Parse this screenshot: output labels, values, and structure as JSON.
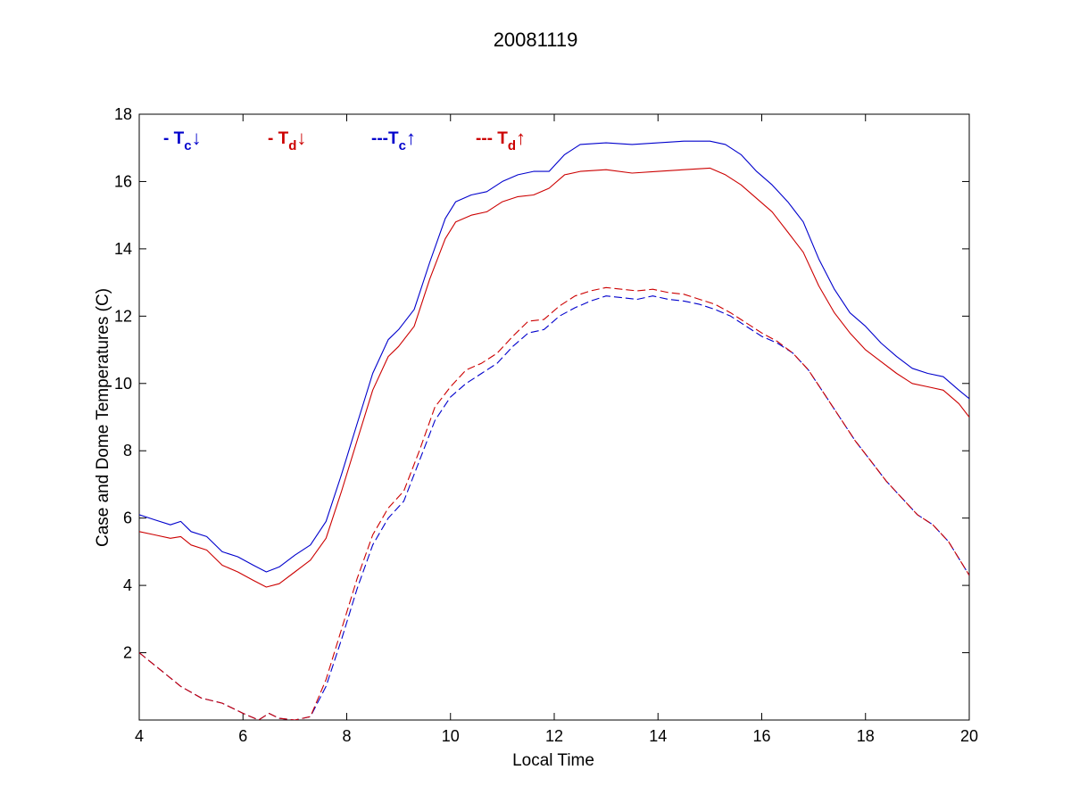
{
  "figure": {
    "title": "20081119",
    "xlabel": "Local Time",
    "ylabel": "Case and Dome Temperatures (C)"
  },
  "legend": [
    {
      "prefix": "- T",
      "sub": "c",
      "arrow": "↓",
      "color": "#0000cc"
    },
    {
      "prefix": "- T",
      "sub": "d",
      "arrow": "↓",
      "color": "#cc0000"
    },
    {
      "prefix": "---T",
      "sub": "c",
      "arrow": "↑",
      "color": "#0000cc"
    },
    {
      "prefix": "--- T",
      "sub": "d",
      "arrow": "↑",
      "color": "#cc0000"
    }
  ],
  "chart_data": {
    "type": "line",
    "title": "20081119",
    "xlabel": "Local Time",
    "ylabel": "Case and Dome Temperatures (C)",
    "xlim": [
      4,
      20
    ],
    "ylim": [
      0,
      18
    ],
    "xticks": [
      4,
      6,
      8,
      10,
      12,
      14,
      16,
      18,
      20
    ],
    "yticks": [
      2,
      4,
      6,
      8,
      10,
      12,
      14,
      16,
      18
    ],
    "grid": false,
    "legend_position": "top-left",
    "series": [
      {
        "name": "- Tc↓",
        "color": "#0000cc",
        "style": "solid",
        "x": [
          4.0,
          4.3,
          4.6,
          4.8,
          5.0,
          5.3,
          5.6,
          5.9,
          6.2,
          6.45,
          6.7,
          7.0,
          7.3,
          7.6,
          7.9,
          8.2,
          8.5,
          8.8,
          9.0,
          9.3,
          9.6,
          9.9,
          10.1,
          10.4,
          10.7,
          11.0,
          11.3,
          11.6,
          11.9,
          12.2,
          12.5,
          13.0,
          13.5,
          14.0,
          14.5,
          15.0,
          15.3,
          15.6,
          15.9,
          16.2,
          16.5,
          16.8,
          17.1,
          17.4,
          17.7,
          18.0,
          18.3,
          18.6,
          18.9,
          19.2,
          19.5,
          19.8,
          20.0
        ],
        "y": [
          6.1,
          5.95,
          5.8,
          5.9,
          5.6,
          5.45,
          5.0,
          4.85,
          4.6,
          4.4,
          4.55,
          4.9,
          5.2,
          5.9,
          7.3,
          8.8,
          10.3,
          11.3,
          11.6,
          12.2,
          13.6,
          14.9,
          15.4,
          15.6,
          15.7,
          16.0,
          16.2,
          16.3,
          16.3,
          16.8,
          17.1,
          17.15,
          17.1,
          17.15,
          17.2,
          17.2,
          17.1,
          16.8,
          16.3,
          15.9,
          15.4,
          14.8,
          13.7,
          12.8,
          12.1,
          11.7,
          11.2,
          10.8,
          10.45,
          10.3,
          10.2,
          9.8,
          9.55
        ]
      },
      {
        "name": "- Td↓",
        "color": "#cc0000",
        "style": "solid",
        "x": [
          4.0,
          4.3,
          4.6,
          4.8,
          5.0,
          5.3,
          5.6,
          5.9,
          6.2,
          6.45,
          6.7,
          7.0,
          7.3,
          7.6,
          7.9,
          8.2,
          8.5,
          8.8,
          9.0,
          9.3,
          9.6,
          9.9,
          10.1,
          10.4,
          10.7,
          11.0,
          11.3,
          11.6,
          11.9,
          12.2,
          12.5,
          13.0,
          13.5,
          14.0,
          14.5,
          15.0,
          15.3,
          15.6,
          15.9,
          16.2,
          16.5,
          16.8,
          17.1,
          17.4,
          17.7,
          18.0,
          18.3,
          18.6,
          18.9,
          19.2,
          19.5,
          19.8,
          20.0
        ],
        "y": [
          5.6,
          5.5,
          5.4,
          5.45,
          5.2,
          5.05,
          4.6,
          4.4,
          4.15,
          3.95,
          4.05,
          4.4,
          4.75,
          5.4,
          6.8,
          8.3,
          9.8,
          10.8,
          11.1,
          11.7,
          13.1,
          14.3,
          14.8,
          15.0,
          15.1,
          15.4,
          15.55,
          15.6,
          15.8,
          16.2,
          16.3,
          16.35,
          16.25,
          16.3,
          16.35,
          16.4,
          16.2,
          15.9,
          15.5,
          15.1,
          14.5,
          13.9,
          12.9,
          12.1,
          11.5,
          11.0,
          10.65,
          10.3,
          10.0,
          9.9,
          9.8,
          9.4,
          9.0
        ]
      },
      {
        "name": "---Tc↑",
        "color": "#0000cc",
        "style": "dashed",
        "x": [
          4.0,
          4.4,
          4.8,
          5.2,
          5.6,
          6.0,
          6.3,
          6.5,
          6.7,
          7.0,
          7.3,
          7.6,
          7.9,
          8.2,
          8.5,
          8.8,
          9.1,
          9.4,
          9.7,
          10.0,
          10.3,
          10.6,
          10.9,
          11.2,
          11.5,
          11.8,
          12.1,
          12.4,
          12.7,
          13.0,
          13.3,
          13.6,
          13.9,
          14.2,
          14.5,
          14.8,
          15.1,
          15.4,
          15.7,
          16.0,
          16.3,
          16.6,
          16.9,
          17.2,
          17.5,
          17.8,
          18.1,
          18.4,
          18.7,
          19.0,
          19.3,
          19.6,
          20.0
        ],
        "y": [
          2.0,
          1.5,
          1.0,
          0.65,
          0.5,
          0.2,
          0.0,
          0.2,
          0.05,
          0.0,
          0.1,
          1.0,
          2.4,
          3.9,
          5.2,
          6.0,
          6.5,
          7.7,
          8.9,
          9.6,
          10.0,
          10.3,
          10.6,
          11.1,
          11.5,
          11.6,
          12.0,
          12.25,
          12.45,
          12.6,
          12.55,
          12.5,
          12.6,
          12.5,
          12.45,
          12.35,
          12.2,
          12.0,
          11.7,
          11.4,
          11.2,
          10.9,
          10.4,
          9.7,
          9.0,
          8.3,
          7.7,
          7.1,
          6.6,
          6.1,
          5.8,
          5.3,
          4.3
        ]
      },
      {
        "name": "--- Td↑",
        "color": "#cc0000",
        "style": "dashed",
        "x": [
          4.0,
          4.4,
          4.8,
          5.2,
          5.6,
          6.0,
          6.3,
          6.5,
          6.7,
          7.0,
          7.3,
          7.6,
          7.9,
          8.2,
          8.5,
          8.8,
          9.1,
          9.4,
          9.7,
          10.0,
          10.3,
          10.6,
          10.9,
          11.2,
          11.5,
          11.8,
          12.1,
          12.4,
          12.7,
          13.0,
          13.3,
          13.6,
          13.9,
          14.2,
          14.5,
          14.8,
          15.1,
          15.4,
          15.7,
          16.0,
          16.3,
          16.6,
          16.9,
          17.2,
          17.5,
          17.8,
          18.1,
          18.4,
          18.7,
          19.0,
          19.3,
          19.6,
          20.0
        ],
        "y": [
          2.0,
          1.5,
          1.0,
          0.65,
          0.5,
          0.2,
          0.0,
          0.2,
          0.05,
          0.0,
          0.1,
          1.2,
          2.7,
          4.2,
          5.5,
          6.3,
          6.8,
          8.0,
          9.3,
          9.9,
          10.4,
          10.6,
          10.9,
          11.4,
          11.85,
          11.9,
          12.3,
          12.6,
          12.75,
          12.85,
          12.8,
          12.75,
          12.8,
          12.7,
          12.65,
          12.5,
          12.35,
          12.1,
          11.8,
          11.5,
          11.25,
          10.9,
          10.4,
          9.7,
          9.0,
          8.3,
          7.7,
          7.1,
          6.6,
          6.1,
          5.8,
          5.3,
          4.3
        ]
      }
    ]
  }
}
